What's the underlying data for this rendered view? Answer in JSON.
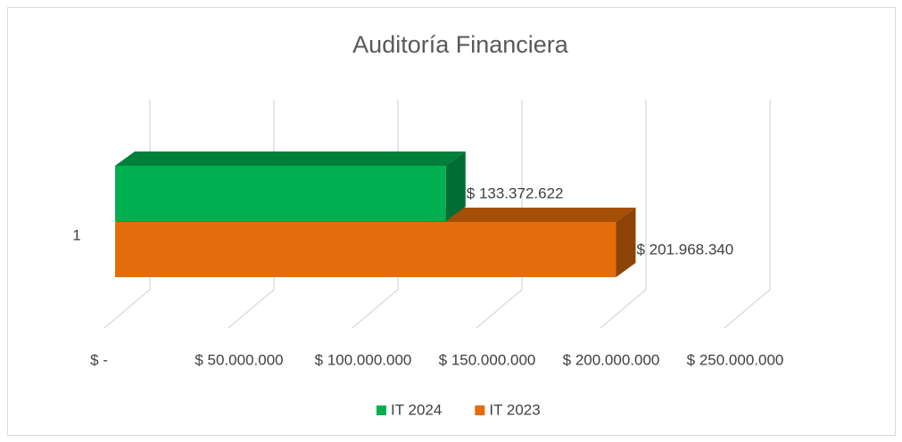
{
  "chart_data": {
    "type": "bar3d",
    "orientation": "horizontal",
    "title": "Auditoría Financiera",
    "categories": [
      "1"
    ],
    "series": [
      {
        "name": "IT 2024",
        "color": "#00b050",
        "values": [
          133372622
        ],
        "value_labels": [
          "$ 133.372.622"
        ]
      },
      {
        "name": "IT 2023",
        "color": "#e46c0a",
        "values": [
          201968340
        ],
        "value_labels": [
          "$ 201.968.340"
        ]
      }
    ],
    "xlim": [
      0,
      250000000
    ],
    "xticks": [
      {
        "value": 0,
        "label": "$ -"
      },
      {
        "value": 50000000,
        "label": "$ 50.000.000"
      },
      {
        "value": 100000000,
        "label": "$ 100.000.000"
      },
      {
        "value": 150000000,
        "label": "$ 150.000.000"
      },
      {
        "value": 200000000,
        "label": "$ 200.000.000"
      },
      {
        "value": 250000000,
        "label": "$ 250.000.000"
      }
    ],
    "grid": true,
    "legend": "bottom"
  }
}
